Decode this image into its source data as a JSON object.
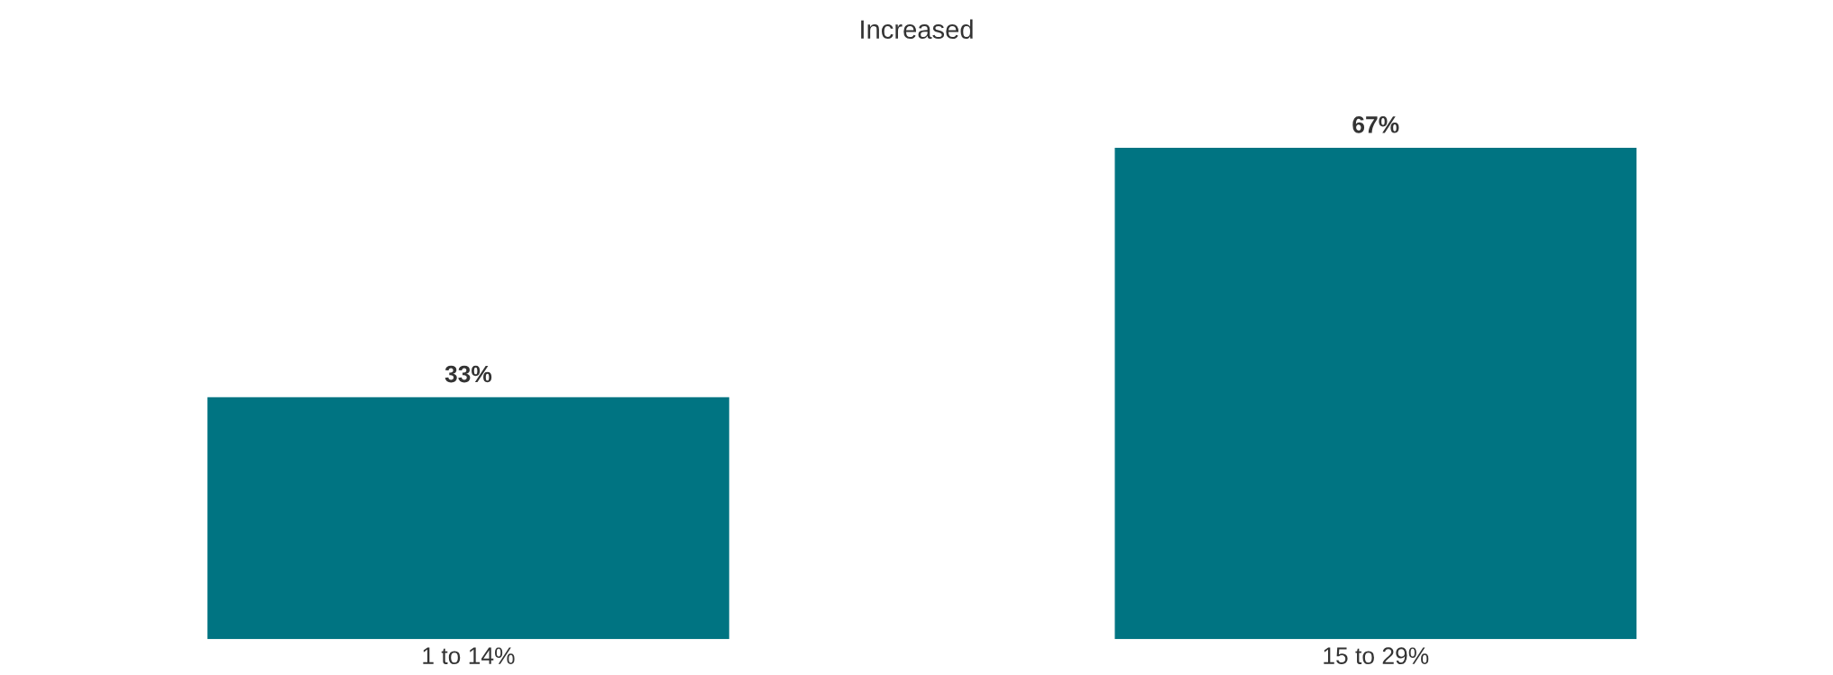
{
  "chart_data": {
    "type": "bar",
    "title": "Increased",
    "categories": [
      "1 to 14%",
      "15 to 29%"
    ],
    "values": [
      33,
      67
    ],
    "value_labels": [
      "33%",
      "67%"
    ],
    "color": "#007482",
    "grid": false,
    "legend": false
  }
}
